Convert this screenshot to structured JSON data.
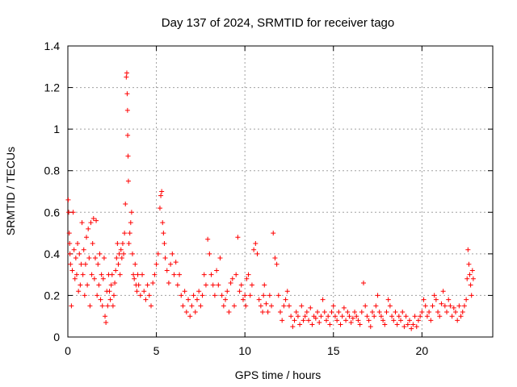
{
  "chart_data": {
    "type": "scatter",
    "title": "Day 137 of 2024, SRMTID for receiver tago",
    "xlabel": "GPS time / hours",
    "ylabel": "SRMTID / TECUs",
    "xlim": [
      0,
      24
    ],
    "ylim": [
      0,
      1.4
    ],
    "x_ticks": [
      0,
      5,
      10,
      15,
      20
    ],
    "x_tick_labels": [
      "0",
      "5",
      "10",
      "15",
      "20"
    ],
    "y_ticks": [
      0,
      0.2,
      0.4,
      0.6,
      0.8,
      1.0,
      1.2,
      1.4
    ],
    "y_tick_labels": [
      "0",
      "0.2",
      "0.4",
      "0.6",
      "0.8",
      "1",
      "1.2",
      "1.4"
    ],
    "grid": true,
    "marker": "+",
    "marker_color": "#ff0000",
    "series": [
      {
        "name": "SRMTID",
        "x": [
          0.02,
          0.05,
          0.08,
          0.1,
          0.12,
          0.15,
          0.2,
          0.25,
          0.3,
          0.35,
          0.4,
          0.45,
          0.5,
          0.55,
          0.6,
          0.65,
          0.7,
          0.75,
          0.8,
          0.85,
          0.9,
          0.95,
          1.0,
          1.05,
          1.1,
          1.15,
          1.2,
          1.25,
          1.3,
          1.35,
          1.4,
          1.45,
          1.5,
          1.55,
          1.6,
          1.65,
          1.7,
          1.75,
          1.8,
          1.85,
          1.9,
          1.95,
          2.0,
          2.05,
          2.1,
          2.15,
          2.2,
          2.25,
          2.3,
          2.35,
          2.4,
          2.45,
          2.5,
          2.55,
          2.6,
          2.65,
          2.7,
          2.75,
          2.8,
          2.85,
          2.9,
          2.95,
          3.0,
          3.05,
          3.1,
          3.15,
          3.2,
          3.25,
          3.3,
          3.33,
          3.35,
          3.37,
          3.38,
          3.4,
          3.42,
          3.45,
          3.5,
          3.55,
          3.6,
          3.65,
          3.7,
          3.75,
          3.8,
          3.85,
          3.9,
          3.95,
          4.0,
          4.1,
          4.2,
          4.3,
          4.4,
          4.5,
          4.6,
          4.7,
          4.8,
          4.9,
          5.0,
          5.1,
          5.2,
          5.25,
          5.3,
          5.35,
          5.4,
          5.45,
          5.5,
          5.6,
          5.7,
          5.8,
          5.9,
          6.0,
          6.1,
          6.2,
          6.3,
          6.4,
          6.5,
          6.6,
          6.7,
          6.8,
          6.9,
          7.0,
          7.1,
          7.2,
          7.3,
          7.4,
          7.5,
          7.6,
          7.7,
          7.8,
          7.9,
          8.0,
          8.1,
          8.2,
          8.3,
          8.4,
          8.5,
          8.6,
          8.7,
          8.8,
          8.9,
          9.0,
          9.1,
          9.2,
          9.3,
          9.4,
          9.5,
          9.6,
          9.7,
          9.8,
          9.9,
          10.0,
          10.05,
          10.1,
          10.2,
          10.3,
          10.4,
          10.5,
          10.6,
          10.7,
          10.8,
          10.9,
          11.0,
          11.05,
          11.1,
          11.2,
          11.3,
          11.4,
          11.5,
          11.6,
          11.7,
          11.8,
          11.9,
          12.0,
          12.1,
          12.2,
          12.3,
          12.4,
          12.5,
          12.6,
          12.7,
          12.8,
          12.9,
          13.0,
          13.1,
          13.2,
          13.3,
          13.4,
          13.5,
          13.6,
          13.7,
          13.8,
          13.9,
          14.0,
          14.1,
          14.2,
          14.3,
          14.4,
          14.5,
          14.6,
          14.7,
          14.8,
          14.9,
          15.0,
          15.1,
          15.2,
          15.3,
          15.4,
          15.5,
          15.6,
          15.7,
          15.8,
          15.9,
          16.0,
          16.1,
          16.2,
          16.3,
          16.4,
          16.5,
          16.6,
          16.7,
          16.8,
          16.9,
          17.0,
          17.1,
          17.2,
          17.3,
          17.4,
          17.5,
          17.6,
          17.7,
          17.8,
          17.9,
          18.0,
          18.1,
          18.2,
          18.3,
          18.4,
          18.5,
          18.6,
          18.7,
          18.8,
          18.9,
          19.0,
          19.1,
          19.2,
          19.3,
          19.4,
          19.5,
          19.6,
          19.7,
          19.8,
          19.9,
          20.0,
          20.1,
          20.2,
          20.3,
          20.4,
          20.5,
          20.6,
          20.7,
          20.8,
          20.9,
          21.0,
          21.1,
          21.2,
          21.3,
          21.4,
          21.5,
          21.6,
          21.7,
          21.8,
          21.9,
          22.0,
          22.1,
          22.2,
          22.3,
          22.4,
          22.5,
          22.55,
          22.6,
          22.65,
          22.7,
          22.75,
          22.8,
          22.85,
          22.9
        ],
        "y": [
          0.66,
          0.6,
          0.5,
          0.45,
          0.4,
          0.35,
          0.15,
          0.32,
          0.6,
          0.42,
          0.28,
          0.38,
          0.3,
          0.45,
          0.22,
          0.4,
          0.25,
          0.35,
          0.55,
          0.3,
          0.42,
          0.2,
          0.35,
          0.48,
          0.25,
          0.52,
          0.38,
          0.15,
          0.55,
          0.3,
          0.45,
          0.57,
          0.28,
          0.38,
          0.56,
          0.2,
          0.35,
          0.25,
          0.4,
          0.18,
          0.3,
          0.15,
          0.28,
          0.38,
          0.1,
          0.07,
          0.22,
          0.15,
          0.3,
          0.22,
          0.18,
          0.25,
          0.3,
          0.15,
          0.2,
          0.26,
          0.32,
          0.38,
          0.45,
          0.35,
          0.4,
          0.3,
          0.42,
          0.38,
          0.45,
          0.4,
          0.5,
          0.64,
          1.25,
          1.27,
          1.17,
          1.09,
          0.97,
          0.87,
          0.75,
          0.45,
          0.5,
          0.55,
          0.6,
          0.4,
          0.3,
          0.28,
          0.35,
          0.25,
          0.22,
          0.3,
          0.25,
          0.2,
          0.3,
          0.22,
          0.18,
          0.25,
          0.2,
          0.15,
          0.26,
          0.3,
          0.35,
          0.4,
          0.62,
          0.68,
          0.7,
          0.55,
          0.5,
          0.45,
          0.38,
          0.32,
          0.26,
          0.35,
          0.4,
          0.3,
          0.36,
          0.25,
          0.3,
          0.2,
          0.15,
          0.22,
          0.12,
          0.18,
          0.1,
          0.15,
          0.2,
          0.12,
          0.18,
          0.22,
          0.15,
          0.2,
          0.3,
          0.25,
          0.47,
          0.4,
          0.3,
          0.25,
          0.2,
          0.32,
          0.25,
          0.38,
          0.2,
          0.15,
          0.18,
          0.22,
          0.12,
          0.26,
          0.28,
          0.15,
          0.3,
          0.48,
          0.22,
          0.25,
          0.18,
          0.2,
          0.15,
          0.28,
          0.3,
          0.2,
          0.25,
          0.42,
          0.45,
          0.4,
          0.18,
          0.15,
          0.12,
          0.2,
          0.25,
          0.16,
          0.12,
          0.2,
          0.15,
          0.5,
          0.38,
          0.35,
          0.2,
          0.12,
          0.08,
          0.15,
          0.18,
          0.22,
          0.15,
          0.1,
          0.05,
          0.08,
          0.12,
          0.1,
          0.06,
          0.15,
          0.08,
          0.1,
          0.12,
          0.08,
          0.14,
          0.06,
          0.1,
          0.09,
          0.12,
          0.07,
          0.1,
          0.18,
          0.12,
          0.08,
          0.1,
          0.06,
          0.12,
          0.15,
          0.1,
          0.08,
          0.12,
          0.06,
          0.1,
          0.14,
          0.08,
          0.12,
          0.1,
          0.07,
          0.09,
          0.12,
          0.1,
          0.08,
          0.06,
          0.12,
          0.26,
          0.15,
          0.1,
          0.08,
          0.05,
          0.12,
          0.1,
          0.15,
          0.2,
          0.12,
          0.1,
          0.08,
          0.06,
          0.12,
          0.18,
          0.15,
          0.1,
          0.08,
          0.12,
          0.06,
          0.1,
          0.08,
          0.12,
          0.05,
          0.1,
          0.06,
          0.08,
          0.04,
          0.06,
          0.1,
          0.05,
          0.08,
          0.1,
          0.12,
          0.18,
          0.15,
          0.1,
          0.12,
          0.08,
          0.15,
          0.2,
          0.18,
          0.12,
          0.1,
          0.16,
          0.22,
          0.15,
          0.12,
          0.18,
          0.15,
          0.1,
          0.14,
          0.12,
          0.08,
          0.15,
          0.1,
          0.12,
          0.15,
          0.18,
          0.28,
          0.42,
          0.35,
          0.3,
          0.25,
          0.2,
          0.32,
          0.28
        ]
      }
    ]
  }
}
